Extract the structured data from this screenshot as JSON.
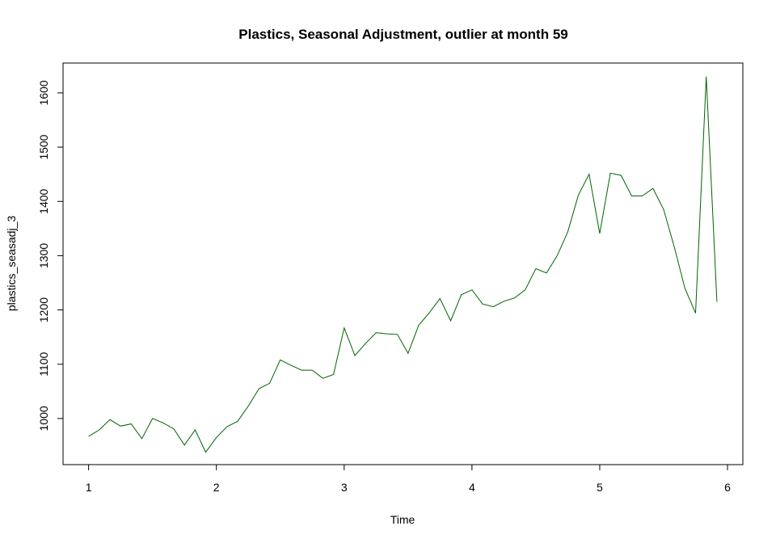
{
  "chart_data": {
    "type": "line",
    "title": "Plastics, Seasonal Adjustment, outlier at month 59",
    "xlabel": "Time",
    "ylabel": "plastics_seasadj_3",
    "xlim": [
      0.8,
      6.12
    ],
    "ylim": [
      915,
      1655
    ],
    "x_ticks": [
      1,
      2,
      3,
      4,
      5,
      6
    ],
    "y_ticks": [
      1000,
      1100,
      1200,
      1300,
      1400,
      1500,
      1600
    ],
    "grid": false,
    "line_color": "#006400",
    "series": [
      {
        "x_start": 1,
        "x_step": 0.0833333,
        "values": [
          967,
          979,
          998,
          986,
          990,
          963,
          1000,
          992,
          981,
          951,
          979,
          938,
          965,
          985,
          995,
          1023,
          1055,
          1065,
          1108,
          1098,
          1089,
          1089,
          1074,
          1081,
          1167,
          1116,
          1138,
          1158,
          1156,
          1155,
          1120,
          1172,
          1195,
          1221,
          1180,
          1228,
          1237,
          1211,
          1206,
          1216,
          1222,
          1237,
          1276,
          1268,
          1300,
          1344,
          1412,
          1450,
          1341,
          1452,
          1448,
          1410,
          1410,
          1424,
          1385,
          1316,
          1240,
          1194,
          1630,
          1215
        ]
      }
    ]
  }
}
